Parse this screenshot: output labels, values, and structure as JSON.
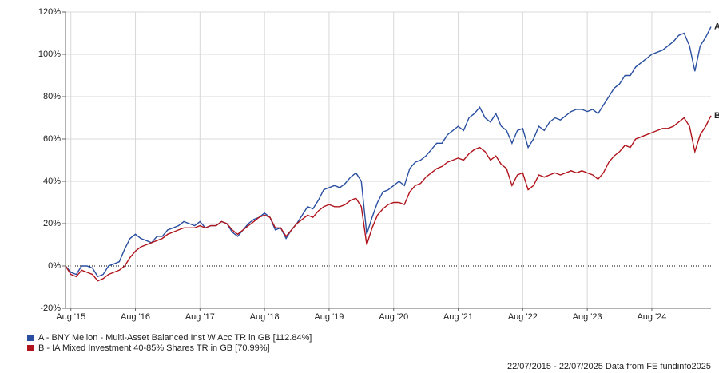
{
  "chart_data": {
    "type": "line",
    "categories": [
      null,
      "Aug '15",
      null,
      null,
      null,
      null,
      null,
      null,
      null,
      null,
      null,
      null,
      null,
      "Aug '16",
      null,
      null,
      null,
      null,
      null,
      null,
      null,
      null,
      null,
      null,
      null,
      "Aug '17",
      null,
      null,
      null,
      null,
      null,
      null,
      null,
      null,
      null,
      null,
      null,
      "Aug '18",
      null,
      null,
      null,
      null,
      null,
      null,
      null,
      null,
      null,
      null,
      null,
      "Aug '19",
      null,
      null,
      null,
      null,
      null,
      null,
      null,
      null,
      null,
      null,
      null,
      "Aug '20",
      null,
      null,
      null,
      null,
      null,
      null,
      null,
      null,
      null,
      null,
      null,
      "Aug '21",
      null,
      null,
      null,
      null,
      null,
      null,
      null,
      null,
      null,
      null,
      null,
      "Aug '22",
      null,
      null,
      null,
      null,
      null,
      null,
      null,
      null,
      null,
      null,
      null,
      "Aug '23",
      null,
      null,
      null,
      null,
      null,
      null,
      null,
      null,
      null,
      null,
      null,
      "Aug '24",
      null,
      null,
      null,
      null,
      null,
      null,
      null,
      null,
      null,
      null,
      null
    ],
    "series": [
      {
        "name": "A - BNY Mellon - Multi-Asset Balanced Inst W Acc TR in GB [112.84%]",
        "label": "A",
        "color": "#2a4fa0",
        "values": [
          0,
          -3,
          -4,
          0,
          0,
          -1,
          -5,
          -4,
          0,
          1,
          2,
          8,
          13,
          15,
          13,
          12,
          11,
          14,
          14,
          17,
          18,
          19,
          21,
          20,
          19,
          21,
          18,
          19,
          19,
          21,
          20,
          16,
          14,
          17,
          20,
          22,
          23,
          25,
          23,
          17,
          18,
          13,
          17,
          20,
          24,
          28,
          27,
          31,
          36,
          37,
          38,
          37,
          39,
          42,
          44,
          40,
          15,
          23,
          30,
          35,
          36,
          38,
          40,
          38,
          46,
          49,
          50,
          52,
          55,
          58,
          58,
          62,
          64,
          66,
          64,
          70,
          72,
          75,
          70,
          68,
          72,
          66,
          64,
          58,
          64,
          65,
          56,
          60,
          66,
          64,
          68,
          70,
          69,
          71,
          73,
          74,
          74,
          73,
          74,
          72,
          76,
          80,
          84,
          86,
          90,
          90,
          94,
          96,
          98,
          100,
          101,
          102,
          104,
          106,
          109,
          110,
          104,
          92,
          104,
          108,
          113
        ]
      },
      {
        "name": "B - IA Mixed Investment 40-85% Shares TR in GB [70.99%]",
        "label": "B",
        "color": "#b0141c",
        "values": [
          0,
          -4,
          -5,
          -2,
          -3,
          -4,
          -7,
          -6,
          -4,
          -3,
          -2,
          0,
          4,
          7,
          9,
          10,
          11,
          12,
          13,
          15,
          16,
          17,
          18,
          18,
          18,
          19,
          18,
          19,
          19,
          21,
          20,
          17,
          15,
          17,
          19,
          21,
          23,
          24,
          23,
          18,
          18,
          14,
          17,
          20,
          22,
          24,
          23,
          26,
          28,
          29,
          28,
          28,
          29,
          31,
          32,
          28,
          10,
          18,
          24,
          27,
          29,
          30,
          30,
          29,
          35,
          38,
          39,
          42,
          44,
          46,
          47,
          49,
          50,
          51,
          50,
          53,
          55,
          56,
          54,
          50,
          52,
          48,
          46,
          38,
          43,
          44,
          36,
          38,
          43,
          42,
          43,
          44,
          43,
          44,
          45,
          44,
          45,
          44,
          43,
          41,
          44,
          49,
          52,
          54,
          57,
          56,
          60,
          61,
          62,
          63,
          64,
          65,
          65,
          66,
          68,
          70,
          66,
          54,
          62,
          66,
          71
        ]
      }
    ],
    "ylim": [
      -20,
      120
    ],
    "yticks": [
      {
        "value": -20,
        "label": "-20%"
      },
      {
        "value": 0,
        "label": "0%"
      },
      {
        "value": 20,
        "label": "20%"
      },
      {
        "value": 40,
        "label": "40%"
      },
      {
        "value": 60,
        "label": "60%"
      },
      {
        "value": 80,
        "label": "80%"
      },
      {
        "value": 100,
        "label": "100%"
      },
      {
        "value": 120,
        "label": "120%"
      }
    ],
    "grid": true,
    "note": "22/07/2015 - 22/07/2025 Data from FE fundinfo2025"
  }
}
